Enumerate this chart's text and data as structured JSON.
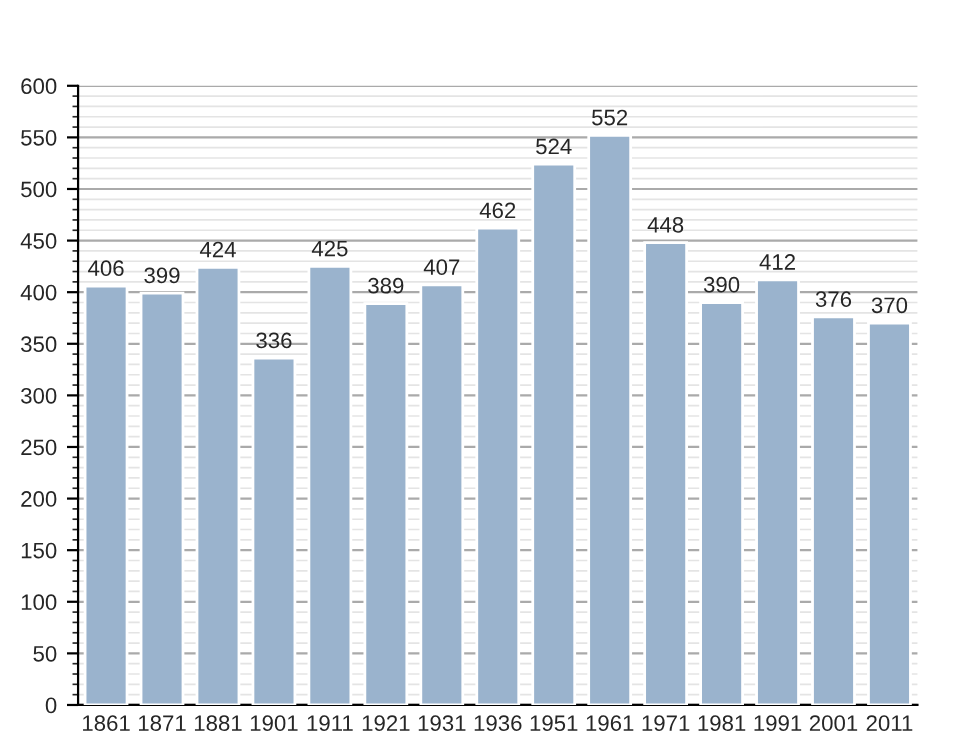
{
  "chart_data": {
    "type": "bar",
    "categories": [
      "1861",
      "1871",
      "1881",
      "1901",
      "1911",
      "1921",
      "1931",
      "1936",
      "1951",
      "1961",
      "1971",
      "1981",
      "1991",
      "2001",
      "2011"
    ],
    "values": [
      406,
      399,
      424,
      336,
      425,
      389,
      407,
      462,
      524,
      552,
      448,
      390,
      412,
      376,
      370
    ],
    "color": "#9ab3cd",
    "ylim": [
      0,
      600
    ],
    "yticks": [
      0,
      50,
      100,
      150,
      200,
      250,
      300,
      350,
      400,
      450,
      500,
      550,
      600
    ],
    "grid": "y",
    "data_labels": true
  }
}
